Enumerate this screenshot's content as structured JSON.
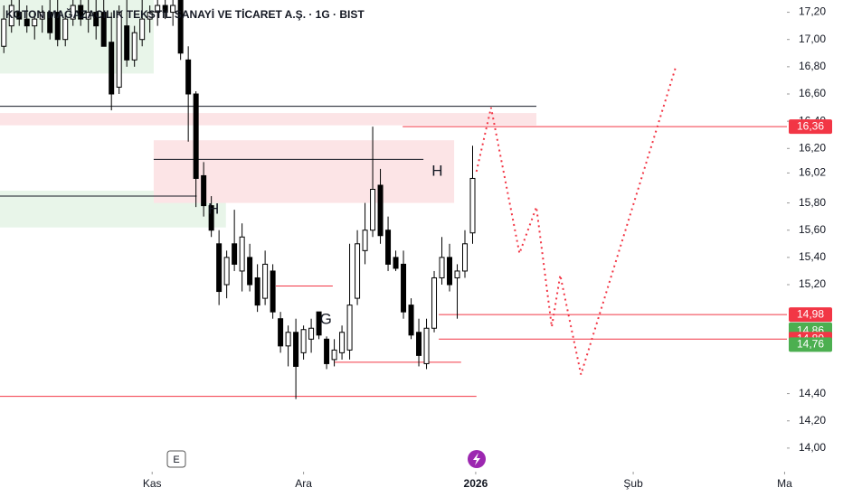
{
  "chart_data": {
    "type": "candlestick",
    "title": "KOTON MAĞAZACILIK TEKSTİL SANAYİ VE TİCARET A.Ş. · 1G · BIST",
    "up_color": "#ffffff",
    "down_color": "#000000",
    "open": [
      16.95,
      17.1,
      17.2,
      17.15,
      17.1,
      17.15,
      17.2,
      17.2,
      17.0,
      17.15,
      17.25,
      17.15,
      17.2,
      17.2,
      16.98,
      16.65,
      17.1,
      16.85,
      17.0,
      17.15,
      17.2,
      17.25,
      17.2,
      17.29,
      16.85,
      16.6,
      16.0,
      15.78,
      15.5,
      15.2,
      15.5,
      15.3,
      15.4,
      15.25,
      15.1,
      15.3,
      14.95,
      14.75,
      14.85,
      14.7,
      14.8,
      15.0,
      14.8,
      14.65,
      14.7,
      14.72,
      15.1,
      15.45,
      15.6,
      15.93,
      15.6,
      15.4,
      15.35,
      15.05,
      14.85,
      14.62,
      14.88,
      15.25,
      15.4,
      15.25,
      15.3,
      15.58
    ],
    "high": [
      17.25,
      17.29,
      17.29,
      17.25,
      17.2,
      17.25,
      17.29,
      17.29,
      17.2,
      17.29,
      17.29,
      17.29,
      17.29,
      17.29,
      17.2,
      17.25,
      17.29,
      17.1,
      17.29,
      17.25,
      17.29,
      17.29,
      17.29,
      17.29,
      16.95,
      16.62,
      16.1,
      15.85,
      15.6,
      15.45,
      15.75,
      15.65,
      15.5,
      15.35,
      15.45,
      15.35,
      15.0,
      14.9,
      14.95,
      14.9,
      14.95,
      15.0,
      14.82,
      14.8,
      14.9,
      15.5,
      15.6,
      15.8,
      16.36,
      16.05,
      15.7,
      15.45,
      15.45,
      15.1,
      14.95,
      14.95,
      15.3,
      15.55,
      15.5,
      15.35,
      15.6,
      16.22
    ],
    "low": [
      16.9,
      17.05,
      17.1,
      17.05,
      17.0,
      17.05,
      17.0,
      16.95,
      16.95,
      17.1,
      17.1,
      17.05,
      17.0,
      16.95,
      16.48,
      16.6,
      16.8,
      16.8,
      16.95,
      17.05,
      17.1,
      17.15,
      17.1,
      16.85,
      16.25,
      15.77,
      15.7,
      15.55,
      15.05,
      15.1,
      15.3,
      15.15,
      15.15,
      15.0,
      15.05,
      14.95,
      14.7,
      14.6,
      14.36,
      14.65,
      14.7,
      14.8,
      14.58,
      14.6,
      14.65,
      14.65,
      15.05,
      15.35,
      15.55,
      15.5,
      15.3,
      15.3,
      14.95,
      14.8,
      14.6,
      14.58,
      14.85,
      15.2,
      15.15,
      14.95,
      15.25,
      15.5
    ],
    "close": [
      17.15,
      17.25,
      17.15,
      17.1,
      17.15,
      17.2,
      17.05,
      17.0,
      17.15,
      17.25,
      17.15,
      17.2,
      17.1,
      16.95,
      16.6,
      17.2,
      16.85,
      17.05,
      17.15,
      17.2,
      17.25,
      17.2,
      17.25,
      16.9,
      16.6,
      15.98,
      15.78,
      15.6,
      15.15,
      15.4,
      15.35,
      15.55,
      15.2,
      15.05,
      15.35,
      15.0,
      14.75,
      14.85,
      14.6,
      14.87,
      14.88,
      14.83,
      14.62,
      14.72,
      14.85,
      15.05,
      15.5,
      15.6,
      15.9,
      15.56,
      15.35,
      15.32,
      15.0,
      14.83,
      14.68,
      14.88,
      15.25,
      15.4,
      15.2,
      15.3,
      15.5,
      15.98
    ],
    "xlim": [
      -0.5,
      101.9
    ],
    "xticks": [
      {
        "value": 19.3,
        "label": "Kas"
      },
      {
        "value": 39,
        "label": "Ara"
      },
      {
        "value": 61.4,
        "label": "2026"
      },
      {
        "value": 81.9,
        "label": "Şub"
      },
      {
        "value": 101.6,
        "label": "Ma"
      }
    ],
    "ylim": [
      13.84,
      17.29
    ],
    "yticks": [
      {
        "value": 14,
        "label": "14,00"
      },
      {
        "value": 14.2,
        "label": "14,20"
      },
      {
        "value": 14.4,
        "label": "14,40"
      },
      {
        "value": 15.2,
        "label": "15,20"
      },
      {
        "value": 15.4,
        "label": "15,40"
      },
      {
        "value": 15.6,
        "label": "15,60"
      },
      {
        "value": 15.8,
        "label": "15,80"
      },
      {
        "value": 16.02,
        "label": "16,02"
      },
      {
        "value": 16.2,
        "label": "16,20"
      },
      {
        "value": 16.4,
        "label": "16,40"
      },
      {
        "value": 16.6,
        "label": "16,60"
      },
      {
        "value": 16.8,
        "label": "16,80"
      },
      {
        "value": 17,
        "label": "17,00"
      },
      {
        "value": 17.2,
        "label": "17,20"
      }
    ],
    "zones": [
      {
        "y": [
          16.75,
          17.29
        ],
        "x": [
          -0.5,
          19.5
        ],
        "color": "#e8f5e9"
      },
      {
        "y": [
          15.62,
          15.89
        ],
        "x": [
          -0.5,
          28.9
        ],
        "color": "#e8f5e9"
      },
      {
        "y": [
          16.37,
          16.46
        ],
        "x": [
          -0.5,
          69.3
        ],
        "color": "#fce4e6"
      },
      {
        "y": [
          15.8,
          16.26
        ],
        "x": [
          19.5,
          58.6
        ],
        "color": "#fce4e6"
      }
    ],
    "levels": [
      {
        "y": 16.51,
        "x": [
          -0.5,
          69.3
        ],
        "color": "#131722"
      },
      {
        "y": 16.12,
        "x": [
          19.5,
          54.6
        ],
        "color": "#131722"
      },
      {
        "y": 15.85,
        "x": [
          -0.5,
          25.1
        ],
        "color": "#131722"
      },
      {
        "y": 16.36,
        "x": [
          51.9,
          101.9
        ],
        "color": "#f23645"
      },
      {
        "y": 14.38,
        "x": [
          -0.5,
          61.5
        ],
        "color": "#f23645"
      },
      {
        "y": 14.98,
        "x": [
          56.6,
          101.9
        ],
        "color": "#f23645"
      },
      {
        "y": 14.8,
        "x": [
          56.6,
          101.9
        ],
        "color": "#f23645"
      },
      {
        "y": 15.19,
        "x": [
          35.4,
          42.8
        ],
        "color": "#f23645"
      },
      {
        "y": 14.63,
        "x": [
          43,
          59.5
        ],
        "color": "#f23645"
      }
    ],
    "projection": {
      "x": [
        61.5,
        63.4,
        67.1,
        69.3,
        71.3,
        72.4,
        75.1,
        87.5
      ],
      "y": [
        16.03,
        16.5,
        15.43,
        15.77,
        14.89,
        15.27,
        14.54,
        16.81
      ],
      "color": "#f23645"
    },
    "annotations": [
      {
        "text": "H",
        "x": 56.4,
        "y": 16.03
      },
      {
        "text": "H",
        "x": 27.3,
        "y": 15.75
      },
      {
        "text": "G",
        "x": 41.9,
        "y": 14.94
      }
    ],
    "price_labels": [
      {
        "value": 16.36,
        "label": "16,36",
        "color": "#f23645"
      },
      {
        "value": 14.98,
        "label": "14,98",
        "color": "#f23645"
      },
      {
        "value": 14.87,
        "label": "14,87",
        "color": "#4caf50"
      },
      {
        "value": 14.86,
        "label": "14,86",
        "color": "#4caf50"
      },
      {
        "value": 14.8,
        "label": "14,80",
        "color": "#f23645"
      },
      {
        "value": 14.76,
        "label": "14,76",
        "color": "#4caf50"
      }
    ],
    "event_badge": "E"
  }
}
